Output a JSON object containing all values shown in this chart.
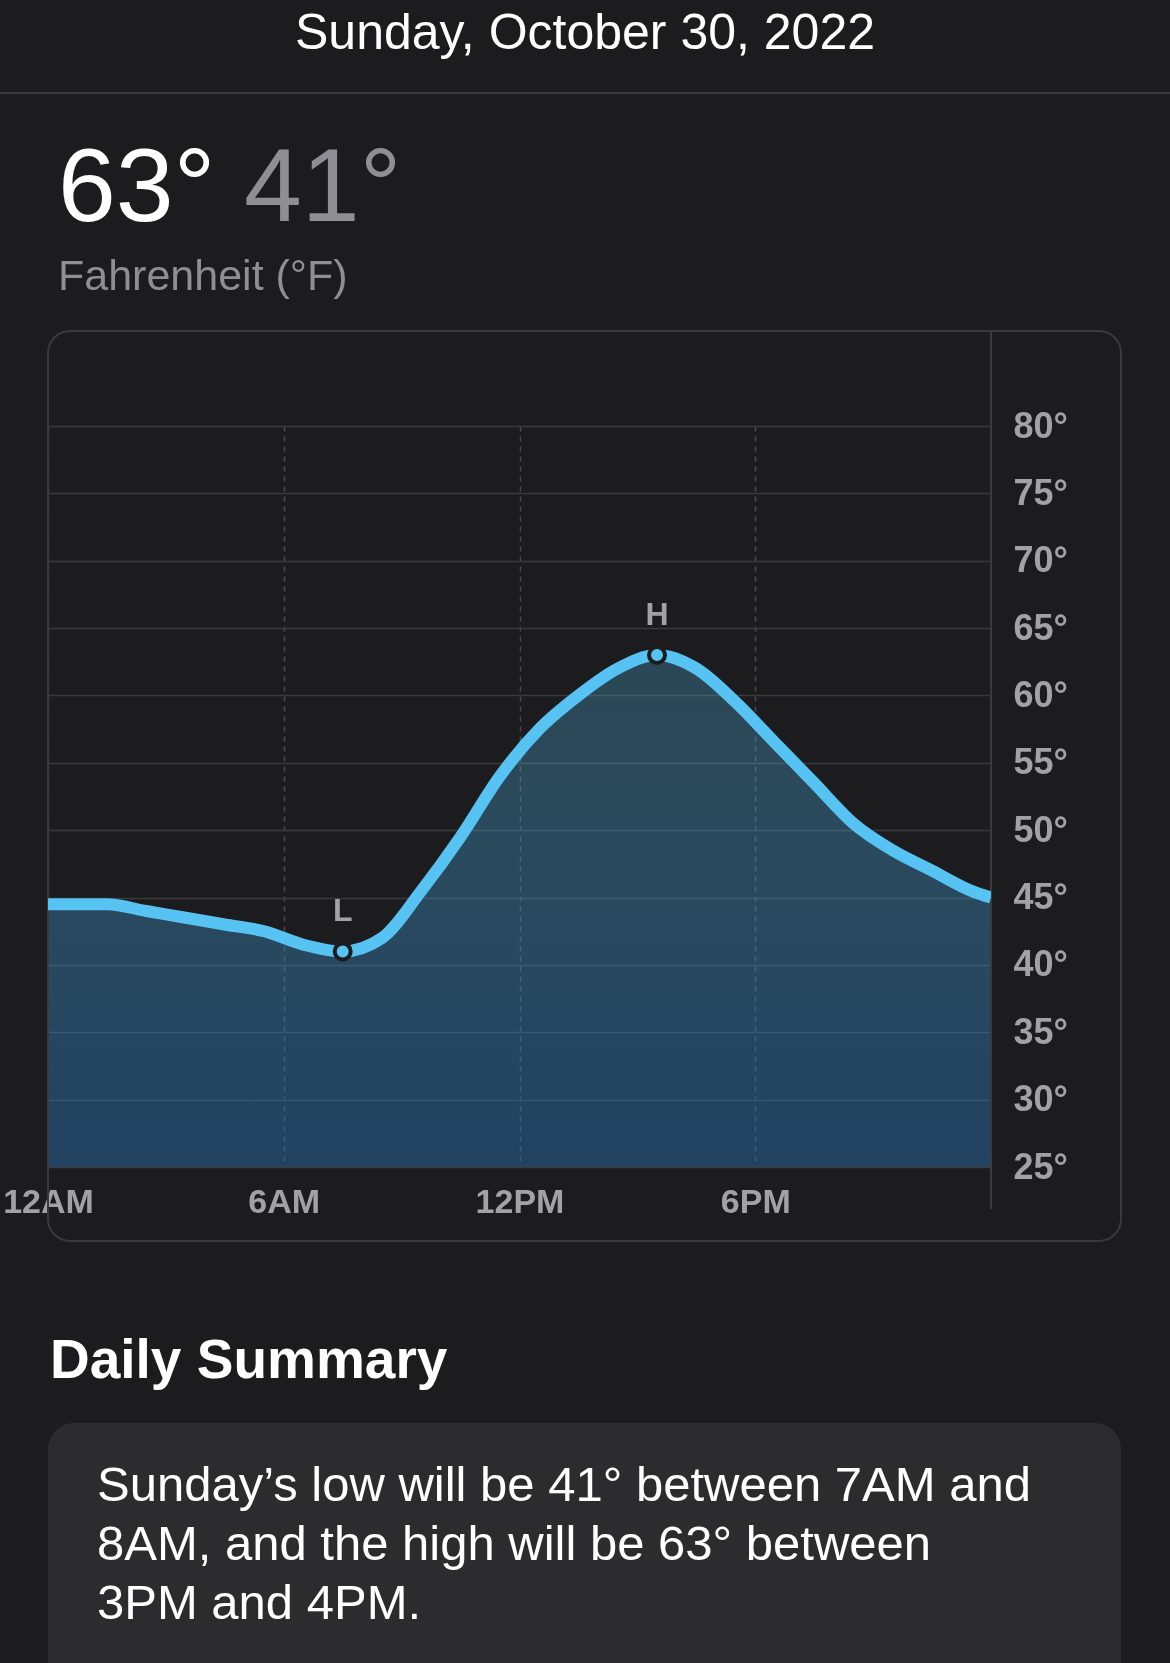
{
  "chart_data": {
    "type": "area",
    "title": "Sunday, October 30, 2022",
    "subtitle": "Fahrenheit (°F)",
    "annotations": [
      "63°",
      "41°",
      "Daily Summary",
      "Sunday’s low will be 41° between 7AM and 8AM, and the high will be 63° between 3PM and 4PM.",
      {
        "text": "L",
        "x": "2022-10-30T07:30",
        "y": 41
      },
      {
        "text": "H",
        "x": "2022-10-30T15:30",
        "y": 63
      }
    ],
    "x": [
      "2022-10-30T00:00",
      "2022-10-30T00:30",
      "2022-10-30T01:30",
      "2022-10-30T02:30",
      "2022-10-30T03:30",
      "2022-10-30T04:30",
      "2022-10-30T05:30",
      "2022-10-30T06:30",
      "2022-10-30T07:30",
      "2022-10-30T08:30",
      "2022-10-30T09:30",
      "2022-10-30T10:30",
      "2022-10-30T11:30",
      "2022-10-30T12:30",
      "2022-10-30T13:30",
      "2022-10-30T14:30",
      "2022-10-30T15:30",
      "2022-10-30T16:30",
      "2022-10-30T17:30",
      "2022-10-30T18:30",
      "2022-10-30T19:30",
      "2022-10-30T20:30",
      "2022-10-30T21:30",
      "2022-10-30T22:30",
      "2022-10-30T23:30",
      "2022-10-31T00:00"
    ],
    "series": [
      {
        "color": "#56c3f3",
        "values": [
          44.5,
          44.5,
          44.5,
          44,
          43.5,
          43,
          42.5,
          41.5,
          41,
          42,
          45.5,
          49.5,
          54,
          57.5,
          60,
          62,
          63,
          62,
          59.5,
          56.5,
          53.5,
          50.5,
          48.5,
          47,
          45.5,
          45
        ]
      },
      {
        "type": "scatter",
        "x": [
          "2022-10-30T07:30",
          "2022-10-30T15:30"
        ],
        "values": [
          41,
          63
        ],
        "color": "#56c3f3",
        "marker": "circle"
      }
    ],
    "xlim": [
      "2022-10-30T00:00",
      "2022-10-31T00:00"
    ],
    "xticks": [
      {
        "value": "2022-10-30T00:00",
        "label": "12AM"
      },
      {
        "value": "2022-10-30T06:00",
        "label": "6AM"
      },
      {
        "value": "2022-10-30T12:00",
        "label": "12PM"
      },
      {
        "value": "2022-10-30T18:00",
        "label": "6PM"
      }
    ],
    "ylim": [
      25,
      80
    ],
    "yticks": [
      {
        "value": 25,
        "label": "25°"
      },
      {
        "value": 30,
        "label": "30°"
      },
      {
        "value": 35,
        "label": "35°"
      },
      {
        "value": 40,
        "label": "40°"
      },
      {
        "value": 45,
        "label": "45°"
      },
      {
        "value": 50,
        "label": "50°"
      },
      {
        "value": 55,
        "label": "55°"
      },
      {
        "value": 60,
        "label": "60°"
      },
      {
        "value": 65,
        "label": "65°"
      },
      {
        "value": 70,
        "label": "70°"
      },
      {
        "value": 75,
        "label": "75°"
      },
      {
        "value": 80,
        "label": "80°"
      }
    ],
    "grid": true
  }
}
